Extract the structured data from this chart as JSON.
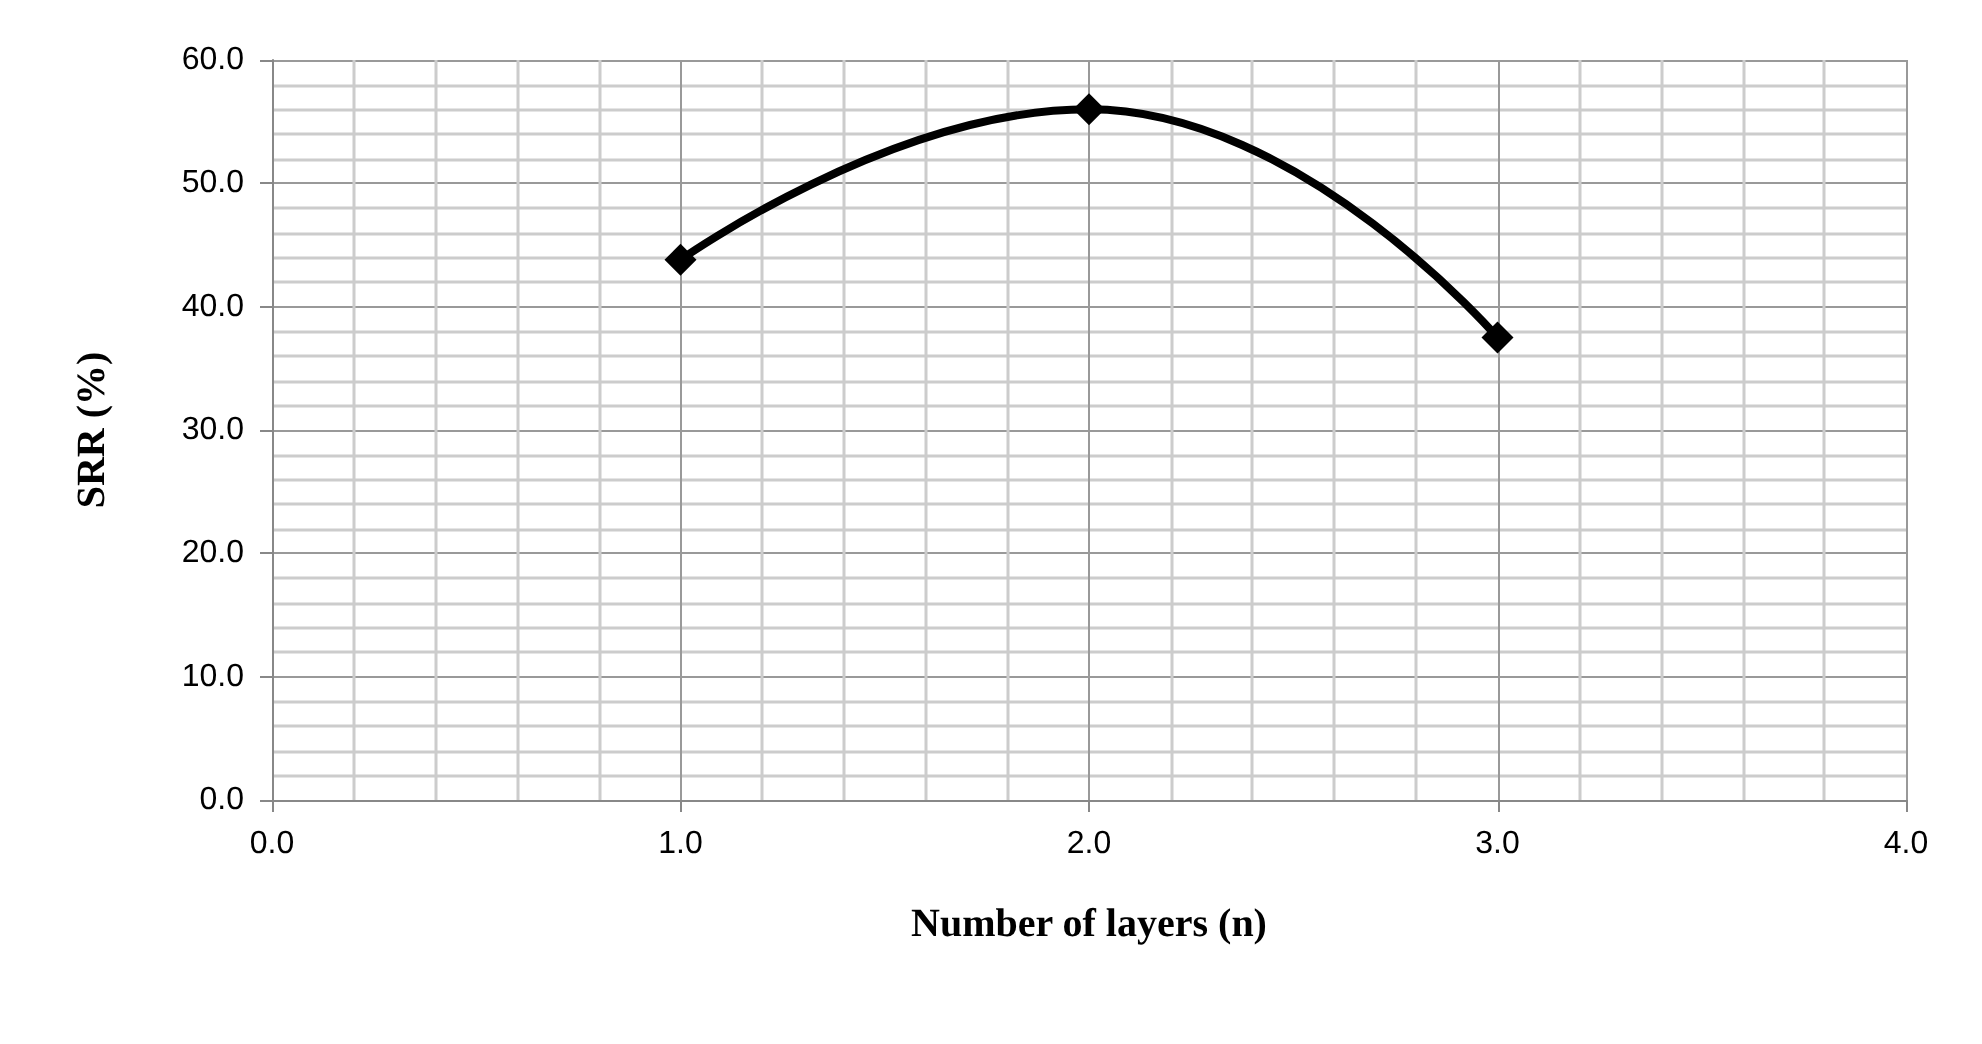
{
  "chart_data": {
    "type": "line",
    "xlabel": "Number of layers (n)",
    "ylabel": "SRR (%)",
    "x": [
      1,
      2,
      3
    ],
    "series": [
      {
        "color": "#000000",
        "values": [
          43.8,
          56.0,
          37.5
        ]
      }
    ],
    "xlim": [
      0,
      4
    ],
    "xticks": [
      {
        "value": 0,
        "label": "0.0"
      },
      {
        "value": 1,
        "label": "1.0"
      },
      {
        "value": 2,
        "label": "2.0"
      },
      {
        "value": 3,
        "label": "3.0"
      },
      {
        "value": 4,
        "label": "4.0"
      }
    ],
    "ylim": [
      0,
      60
    ],
    "yticks": [
      {
        "value": 0,
        "label": "0.0"
      },
      {
        "value": 10,
        "label": "10.0"
      },
      {
        "value": 20,
        "label": "20.0"
      },
      {
        "value": 30,
        "label": "30.0"
      },
      {
        "value": 40,
        "label": "40.0"
      },
      {
        "value": 50,
        "label": "50.0"
      },
      {
        "value": 60,
        "label": "60.0"
      }
    ],
    "grid": true,
    "marker": "diamond",
    "line_style": "solid"
  }
}
